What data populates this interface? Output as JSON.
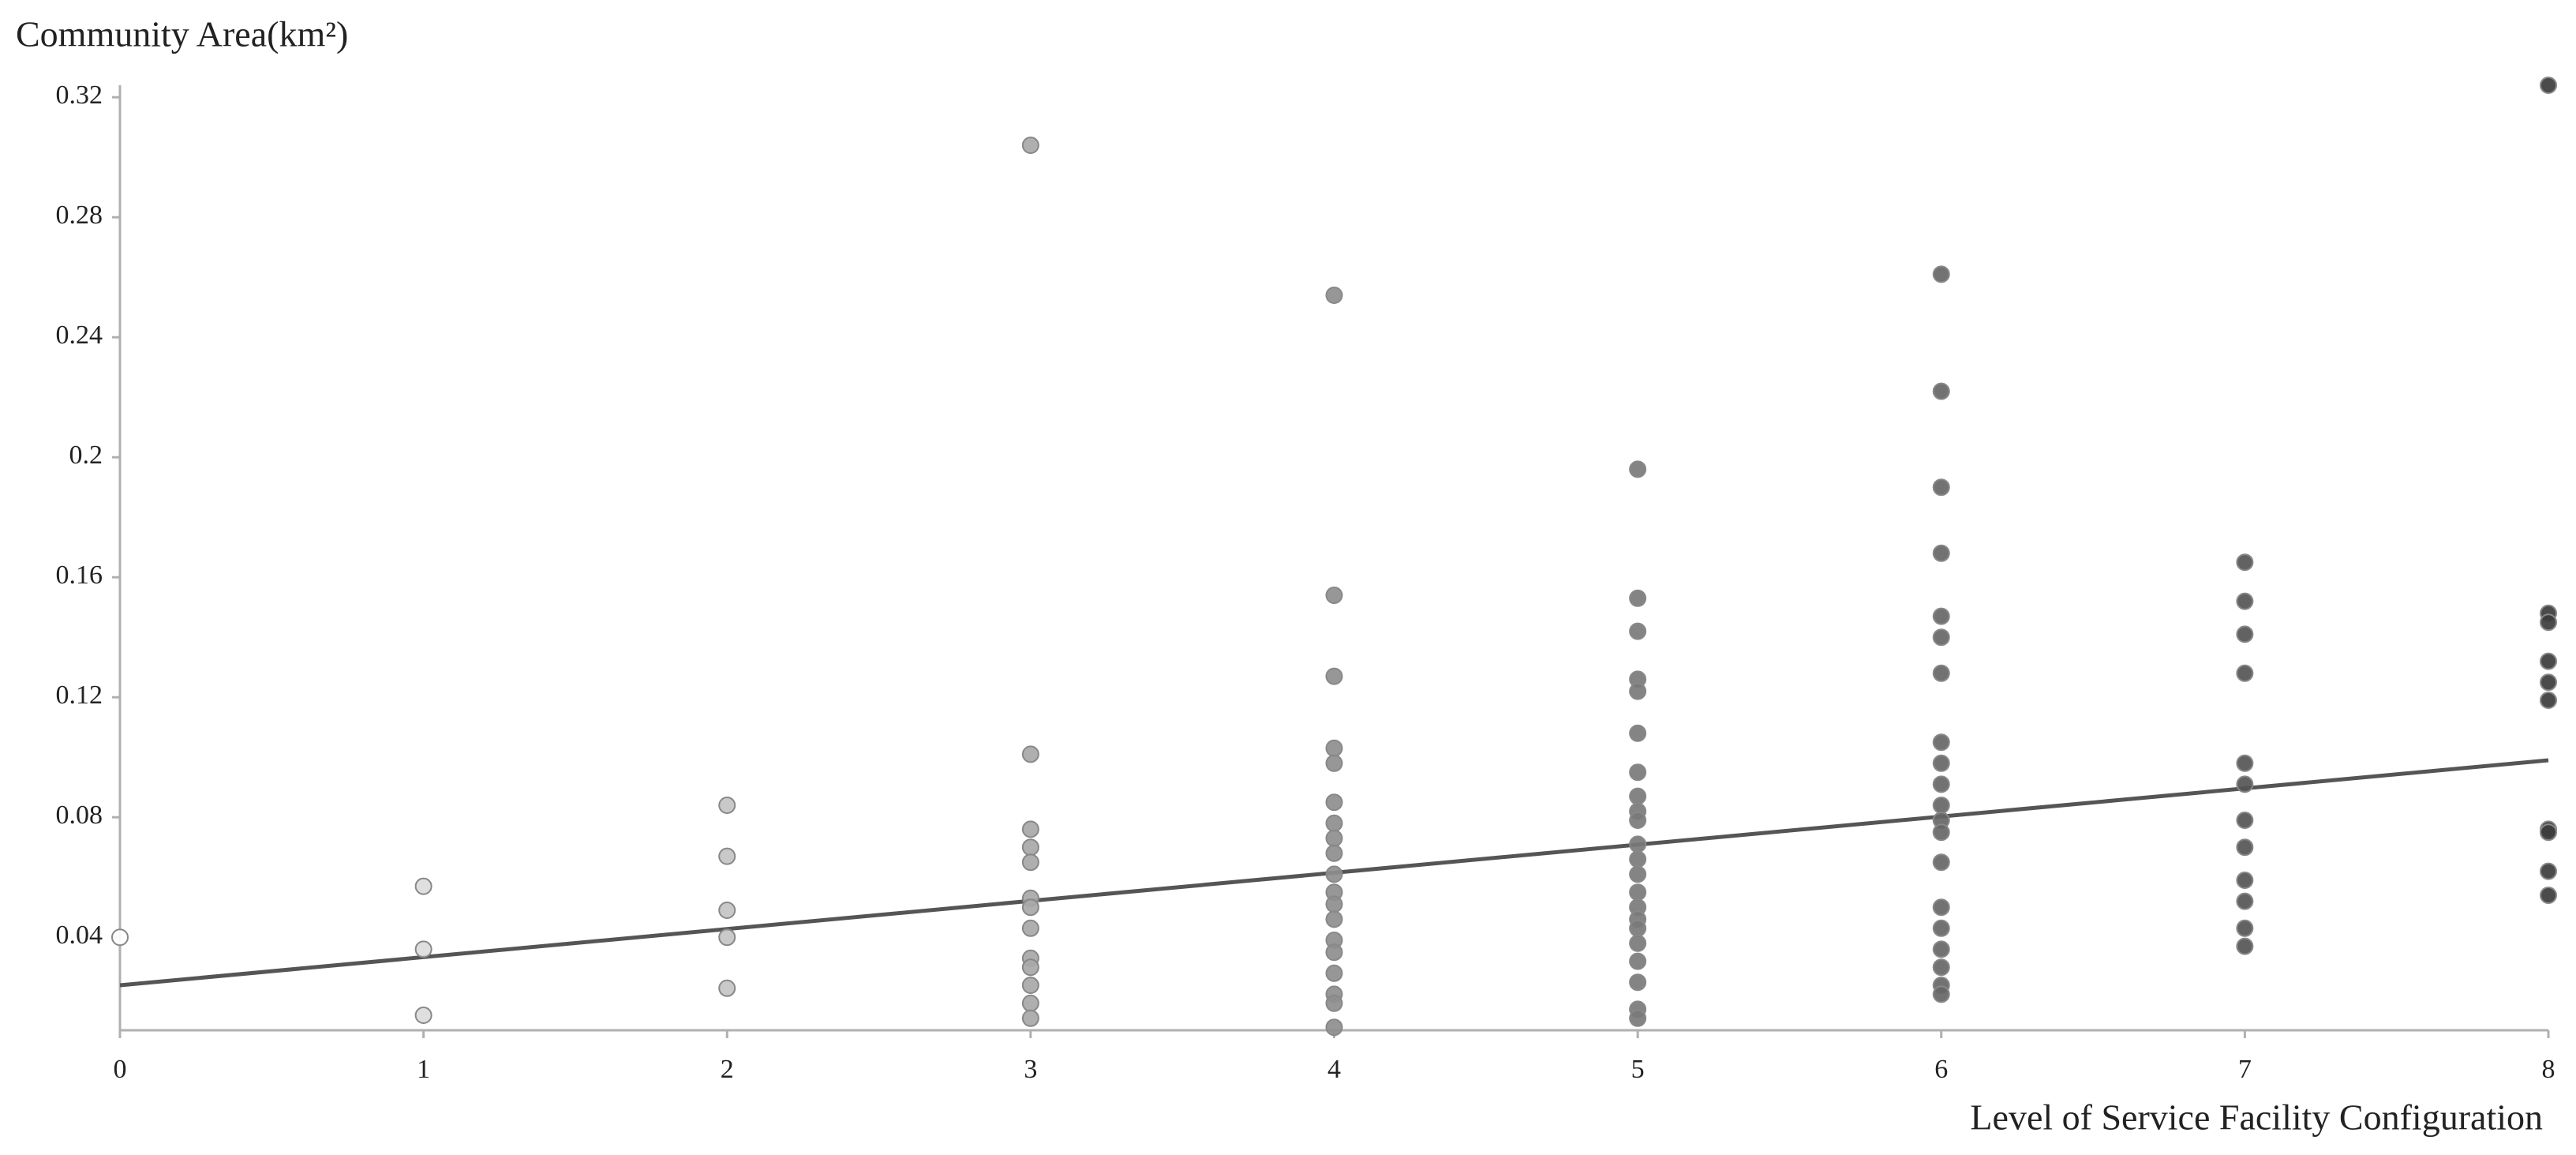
{
  "chart_data": {
    "type": "scatter",
    "y_label": "Community Area(km²)",
    "x_label": "Level of Service Facility Configuration",
    "xlim": [
      0,
      8
    ],
    "xticks": [
      0,
      1,
      2,
      3,
      4,
      5,
      6,
      7,
      8
    ],
    "ylim": [
      0.009,
      0.324
    ],
    "yticks": [
      0.04,
      0.08,
      0.12,
      0.16,
      0.2,
      0.24,
      0.28,
      0.32
    ],
    "grid": false,
    "level_colors": [
      "#ffffff",
      "#dcdcdc",
      "#c4c4c4",
      "#a8a8a8",
      "#8e8e8e",
      "#7a7a7a",
      "#666666",
      "#555555",
      "#3c3c3c"
    ],
    "x": [
      0,
      1,
      1,
      1,
      2,
      2,
      2,
      2,
      2,
      3,
      3,
      3,
      3,
      3,
      3,
      3,
      3,
      3,
      3,
      3,
      3,
      3,
      4,
      4,
      4,
      4,
      4,
      4,
      4,
      4,
      4,
      4,
      4,
      4,
      4,
      4,
      4,
      4,
      4,
      4,
      4,
      5,
      5,
      5,
      5,
      5,
      5,
      5,
      5,
      5,
      5,
      5,
      5,
      5,
      5,
      5,
      5,
      5,
      5,
      5,
      5,
      5,
      5,
      6,
      6,
      6,
      6,
      6,
      6,
      6,
      6,
      6,
      6,
      6,
      6,
      6,
      6,
      6,
      6,
      6,
      6,
      6,
      6,
      7,
      7,
      7,
      7,
      7,
      7,
      7,
      7,
      7,
      7,
      7,
      7,
      8,
      8,
      8,
      8,
      8,
      8,
      8,
      8,
      8,
      8
    ],
    "values": [
      0.04,
      0.057,
      0.036,
      0.014,
      0.084,
      0.067,
      0.049,
      0.04,
      0.023,
      0.304,
      0.101,
      0.076,
      0.07,
      0.065,
      0.053,
      0.05,
      0.043,
      0.033,
      0.03,
      0.024,
      0.018,
      0.013,
      0.254,
      0.154,
      0.127,
      0.103,
      0.098,
      0.085,
      0.078,
      0.073,
      0.068,
      0.061,
      0.055,
      0.051,
      0.046,
      0.039,
      0.035,
      0.028,
      0.021,
      0.018,
      0.01,
      0.196,
      0.153,
      0.142,
      0.126,
      0.122,
      0.108,
      0.095,
      0.087,
      0.082,
      0.079,
      0.071,
      0.066,
      0.061,
      0.055,
      0.05,
      0.046,
      0.043,
      0.038,
      0.032,
      0.025,
      0.016,
      0.013,
      0.261,
      0.222,
      0.19,
      0.168,
      0.147,
      0.14,
      0.128,
      0.105,
      0.098,
      0.091,
      0.084,
      0.079,
      0.075,
      0.065,
      0.05,
      0.043,
      0.036,
      0.03,
      0.024,
      0.021,
      0.165,
      0.152,
      0.141,
      0.128,
      0.098,
      0.091,
      0.079,
      0.07,
      0.059,
      0.052,
      0.043,
      0.037,
      0.324,
      0.148,
      0.145,
      0.132,
      0.125,
      0.119,
      0.076,
      0.075,
      0.062,
      0.054
    ],
    "trendline": {
      "x": [
        0,
        8
      ],
      "values": [
        0.024,
        0.099
      ],
      "color": "#555555"
    }
  }
}
